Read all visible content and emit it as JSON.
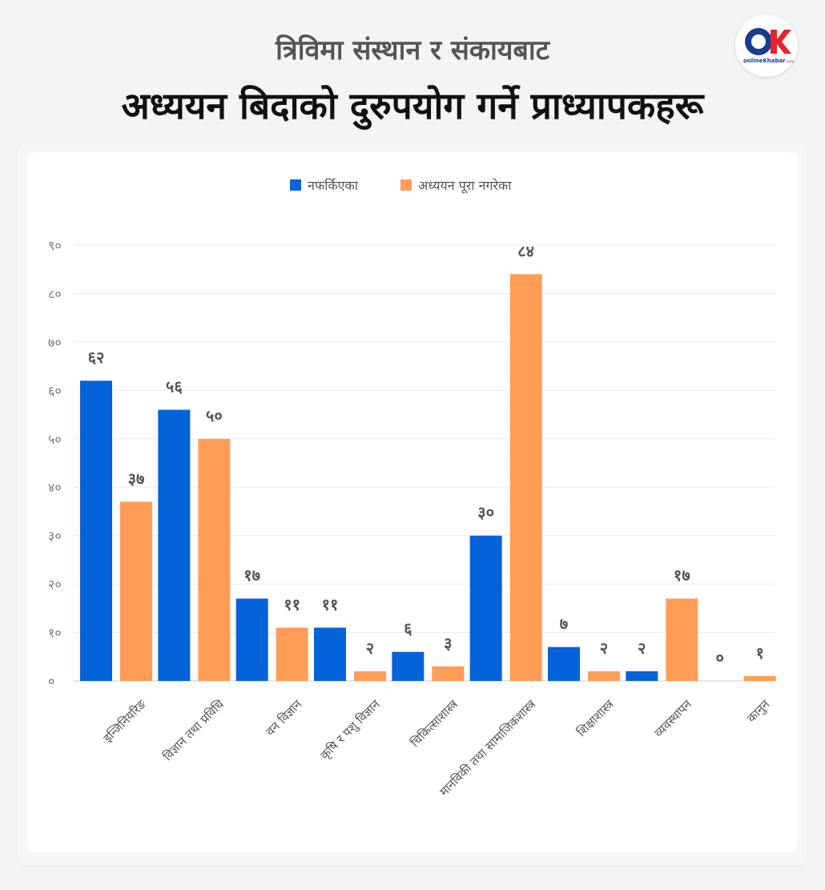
{
  "header": {
    "title_line1": "त्रिविमा संस्थान र संकायबाट",
    "title_line2": "अध्ययन बिदाको दुरुपयोग गर्ने प्राध्यापकहरू"
  },
  "logo": {
    "mark": "OK",
    "wordmark": "onlineKhabar",
    "suffix": ".com",
    "colors": {
      "o": "#1a3c8f",
      "k": "#e8232a"
    }
  },
  "chart_data": {
    "type": "bar",
    "categories": [
      "इन्जिनियरिङ",
      "विज्ञान तथा प्रविधि",
      "वन विज्ञान",
      "कृषि र पशु विज्ञान",
      "चिकित्साशास्त्र",
      "मानविकी तथा सामाजिकशास्त्र",
      "शिक्षाशास्त्र",
      "व्यवस्थापन",
      "कानुन"
    ],
    "series": [
      {
        "name": "नफर्किएका",
        "color": "#0563d9",
        "values": [
          62,
          56,
          17,
          11,
          6,
          30,
          7,
          2,
          0
        ],
        "labels": [
          "६२",
          "५६",
          "१७",
          "११",
          "६",
          "३०",
          "७",
          "२",
          "०"
        ]
      },
      {
        "name": "अध्ययन पूरा नगरेका",
        "color": "#ff9d57",
        "values": [
          37,
          50,
          11,
          2,
          3,
          84,
          2,
          17,
          1
        ],
        "labels": [
          "३७",
          "५०",
          "११",
          "२",
          "३",
          "८४",
          "२",
          "१७",
          "१"
        ]
      }
    ],
    "ylim": [
      0,
      90
    ],
    "yticks": [
      0,
      10,
      20,
      30,
      40,
      50,
      60,
      70,
      80,
      90
    ],
    "ytick_labels": [
      "०",
      "१०",
      "२०",
      "३०",
      "४०",
      "५०",
      "६०",
      "७०",
      "८०",
      "९०"
    ],
    "grid": true,
    "legend_position": "top-center",
    "colors": {
      "grid": "#ebebeb",
      "axis": "#cccccc"
    }
  }
}
